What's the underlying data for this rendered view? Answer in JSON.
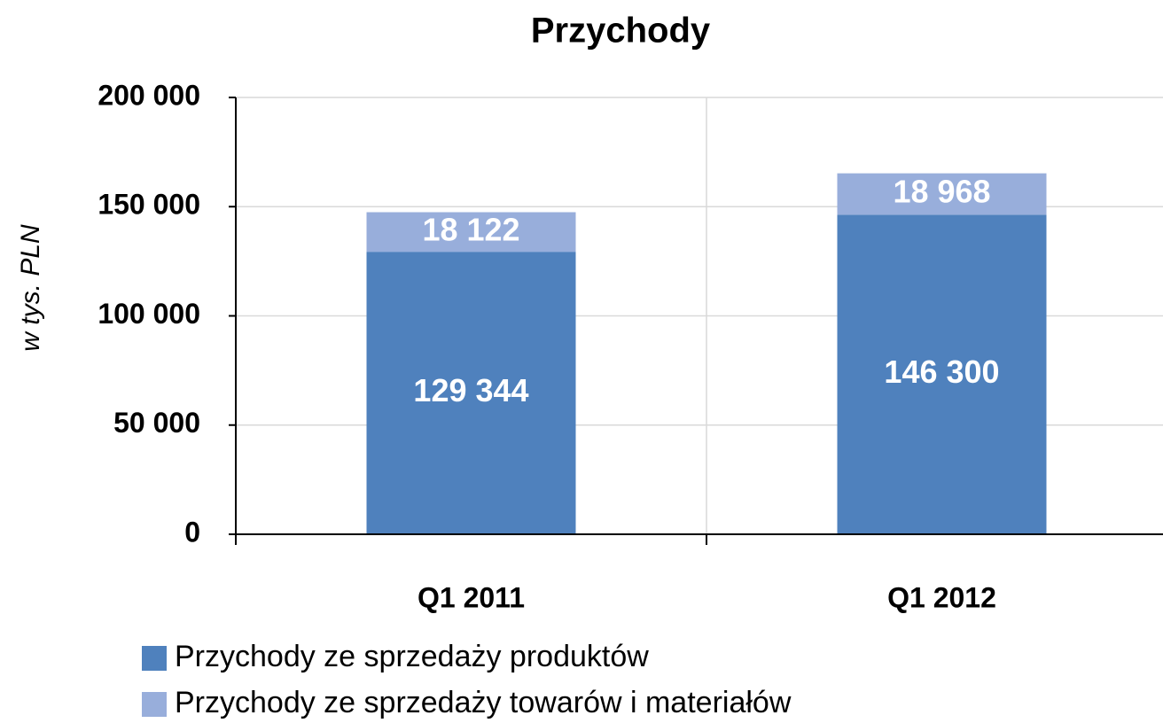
{
  "chart_data": {
    "type": "stacked-bar",
    "title": "Przychody",
    "y_label": "w tys. PLN",
    "categories": [
      "Q1 2011",
      "Q1 2012"
    ],
    "series": [
      {
        "name": "Przychody ze sprzedaży produktów",
        "color": "#4f81bd",
        "values": [
          129344,
          146300
        ],
        "value_labels": [
          "129 344",
          "146 300"
        ]
      },
      {
        "name": "Przychody ze sprzedaży towarów i materiałów",
        "color": "#98aedb",
        "values": [
          18122,
          18968
        ],
        "value_labels": [
          "18 122",
          "18 968"
        ]
      }
    ],
    "ylim": [
      0,
      200000
    ],
    "yticks": [
      {
        "value": 0,
        "label": "0"
      },
      {
        "value": 50000,
        "label": "50 000"
      },
      {
        "value": 100000,
        "label": "100 000"
      },
      {
        "value": 150000,
        "label": "150 000"
      },
      {
        "value": 200000,
        "label": "200 000"
      }
    ],
    "grid": true,
    "legend": "bottom"
  }
}
